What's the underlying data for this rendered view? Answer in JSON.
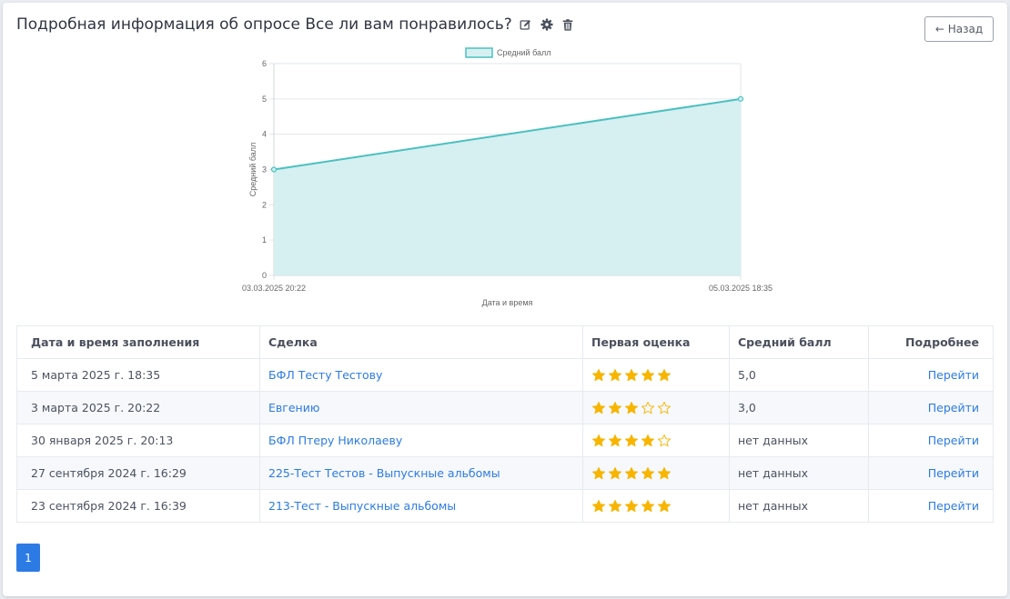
{
  "header": {
    "title": "Подробная информация об опросе Все ли вам понравилось?",
    "back_label": "← Назад"
  },
  "colors": {
    "accent": "#2c7be5",
    "line": "#4bc0c0",
    "fill": "#d6eff0",
    "star": "#f7b500"
  },
  "icons": [
    "edit-icon",
    "gear-icon",
    "trash-icon",
    "star-icon"
  ],
  "chart_data": {
    "type": "line",
    "title": "",
    "legend": "Средний балл",
    "legend_position": "top-center",
    "x": [
      "03.03.2025 20:22",
      "05.03.2025 18:35"
    ],
    "series": [
      {
        "name": "Средний балл",
        "values": [
          3,
          5
        ]
      }
    ],
    "xlabel": "Дата и время",
    "ylabel": "Средний балл",
    "ylim": [
      0,
      6
    ],
    "yticks": [
      "0",
      "1",
      "2",
      "3",
      "4",
      "5",
      "6"
    ],
    "grid": true,
    "filled": true
  },
  "table": {
    "headers": [
      "Дата и время заполнения",
      "Сделка",
      "Первая оценка",
      "Средний балл",
      "Подробнее"
    ],
    "rows": [
      {
        "date": "5 марта 2025 г. 18:35",
        "deal": "БФЛ Тесту Тестову",
        "rating": 5,
        "avg": "5,0",
        "action": "Перейти"
      },
      {
        "date": "3 марта 2025 г. 20:22",
        "deal": "Евгению",
        "rating": 3,
        "avg": "3,0",
        "action": "Перейти"
      },
      {
        "date": "30 января 2025 г. 20:13",
        "deal": "БФЛ Птеру Николаеву",
        "rating": 4,
        "avg": "нет данных",
        "action": "Перейти"
      },
      {
        "date": "27 сентября 2024 г. 16:29",
        "deal": "225-Тест Тестов - Выпускные альбомы",
        "rating": 5,
        "avg": "нет данных",
        "action": "Перейти"
      },
      {
        "date": "23 сентября 2024 г. 16:39",
        "deal": "213-Тест - Выпускные альбомы",
        "rating": 5,
        "avg": "нет данных",
        "action": "Перейти"
      }
    ],
    "max_rating": 5
  },
  "pagination": {
    "current": "1"
  }
}
